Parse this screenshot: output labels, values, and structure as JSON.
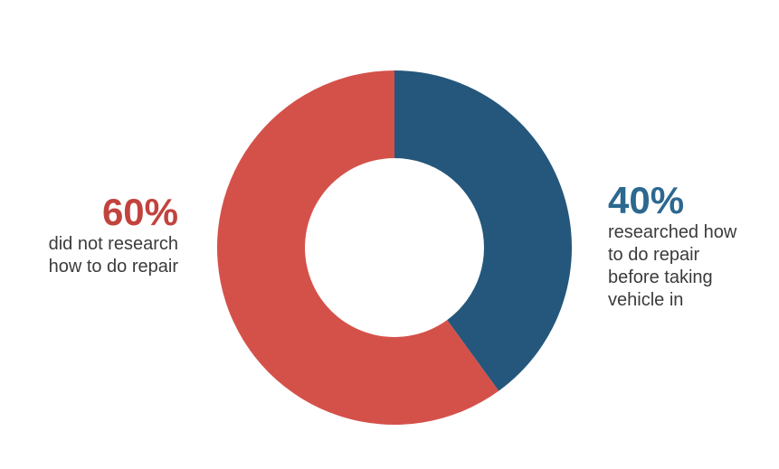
{
  "page": {
    "background": "#ffffff"
  },
  "chart_data": {
    "type": "pie",
    "donut": true,
    "title": "",
    "inner_radius_ratio": 0.505,
    "start_angle_deg": 0,
    "direction": "clockwise",
    "legend_position": "none",
    "slices": [
      {
        "label": "researched how to do repair before taking vehicle in",
        "value": 40,
        "color": "#24577b"
      },
      {
        "label": "did not research how to do repair",
        "value": 60,
        "color": "#d4514a"
      }
    ]
  },
  "left_label": {
    "percent": "60%",
    "percent_color": "#c2433e",
    "lines": [
      "did not research",
      "how to do repair"
    ],
    "text_color": "#3b3b3b"
  },
  "right_label": {
    "percent": "40%",
    "percent_color": "#2c6890",
    "lines": [
      "researched how",
      "to do repair",
      "before taking",
      "vehicle in"
    ],
    "text_color": "#3b3b3b"
  }
}
